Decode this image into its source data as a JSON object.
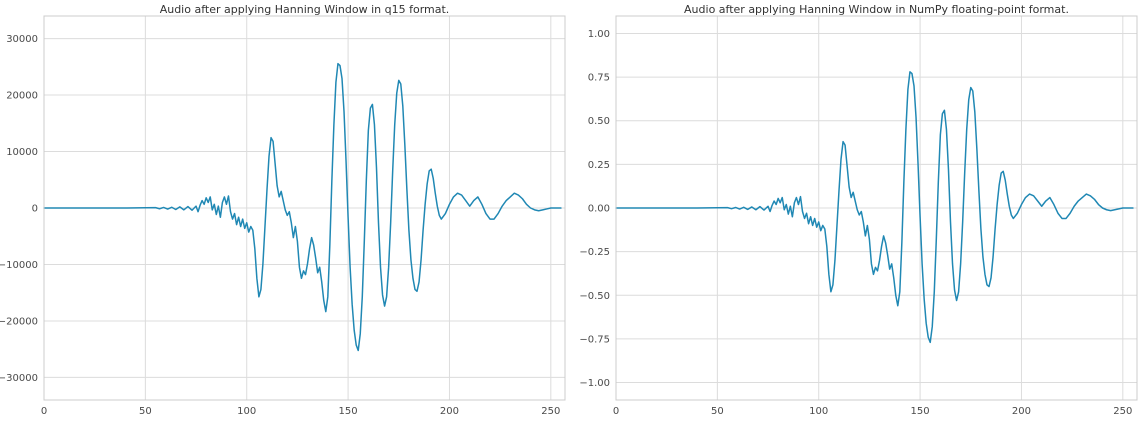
{
  "figure": {
    "background": "#ffffff"
  },
  "chart_data": [
    {
      "type": "line",
      "title": "Audio after applying Hanning Window in q15 format.",
      "xlabel": "",
      "ylabel": "",
      "grid": true,
      "legend": null,
      "line_color": "#2088b4",
      "grid_color": "#dcdcdc",
      "spine_color": "#cccccc",
      "xlim": [
        0,
        257
      ],
      "ylim": [
        -34000,
        34000
      ],
      "xticks": [
        0,
        50,
        100,
        150,
        200,
        250
      ],
      "xtick_labels": [
        "0",
        "50",
        "100",
        "150",
        "200",
        "250"
      ],
      "ytick_values": [
        30000,
        20000,
        10000,
        0,
        -10000,
        -20000,
        -30000
      ],
      "ytick_labels": [
        "30000",
        "20000",
        "10000",
        "0",
        "−10000",
        "−20000",
        "−30000"
      ],
      "points": [
        [
          0,
          0
        ],
        [
          40,
          0
        ],
        [
          55,
          66
        ],
        [
          57,
          -131
        ],
        [
          59,
          98
        ],
        [
          61,
          -197
        ],
        [
          63,
          131
        ],
        [
          65,
          -262
        ],
        [
          67,
          197
        ],
        [
          69,
          -328
        ],
        [
          71,
          262
        ],
        [
          73,
          -393
        ],
        [
          75,
          328
        ],
        [
          76,
          -655
        ],
        [
          77,
          492
        ],
        [
          78,
          1311
        ],
        [
          79,
          655
        ],
        [
          80,
          1802
        ],
        [
          81,
          983
        ],
        [
          82,
          1966
        ],
        [
          83,
          -328
        ],
        [
          84,
          655
        ],
        [
          85,
          -1147
        ],
        [
          86,
          328
        ],
        [
          87,
          -1638
        ],
        [
          88,
          983
        ],
        [
          89,
          1966
        ],
        [
          90,
          655
        ],
        [
          91,
          2130
        ],
        [
          92,
          -655
        ],
        [
          93,
          -1966
        ],
        [
          94,
          -983
        ],
        [
          95,
          -2949
        ],
        [
          96,
          -1638
        ],
        [
          97,
          -3277
        ],
        [
          98,
          -1966
        ],
        [
          99,
          -3604
        ],
        [
          100,
          -2621
        ],
        [
          101,
          -4260
        ],
        [
          102,
          -3277
        ],
        [
          103,
          -3932
        ],
        [
          104,
          -7209
        ],
        [
          105,
          -12452
        ],
        [
          106,
          -15729
        ],
        [
          107,
          -14418
        ],
        [
          108,
          -9830
        ],
        [
          109,
          -3277
        ],
        [
          110,
          3277
        ],
        [
          111,
          9175
        ],
        [
          112,
          12452
        ],
        [
          113,
          11796
        ],
        [
          114,
          7864
        ],
        [
          115,
          3932
        ],
        [
          116,
          1966
        ],
        [
          117,
          2949
        ],
        [
          118,
          1311
        ],
        [
          119,
          -328
        ],
        [
          120,
          -1311
        ],
        [
          121,
          -655
        ],
        [
          122,
          -2621
        ],
        [
          123,
          -5243
        ],
        [
          124,
          -3277
        ],
        [
          125,
          -5898
        ],
        [
          126,
          -10486
        ],
        [
          127,
          -12452
        ],
        [
          128,
          -11141
        ],
        [
          129,
          -11796
        ],
        [
          130,
          -9830
        ],
        [
          131,
          -7209
        ],
        [
          132,
          -5243
        ],
        [
          133,
          -6554
        ],
        [
          134,
          -8847
        ],
        [
          135,
          -11469
        ],
        [
          136,
          -10486
        ],
        [
          137,
          -13107
        ],
        [
          138,
          -16384
        ],
        [
          139,
          -18350
        ],
        [
          140,
          -15729
        ],
        [
          141,
          -6554
        ],
        [
          142,
          4915
        ],
        [
          143,
          14746
        ],
        [
          144,
          22282
        ],
        [
          145,
          25559
        ],
        [
          146,
          25231
        ],
        [
          147,
          22938
        ],
        [
          148,
          17039
        ],
        [
          149,
          8192
        ],
        [
          150,
          -1638
        ],
        [
          151,
          -10486
        ],
        [
          152,
          -17039
        ],
        [
          153,
          -21627
        ],
        [
          154,
          -24248
        ],
        [
          155,
          -25231
        ],
        [
          156,
          -22282
        ],
        [
          157,
          -15729
        ],
        [
          158,
          -5898
        ],
        [
          159,
          4915
        ],
        [
          160,
          13763
        ],
        [
          161,
          17695
        ],
        [
          162,
          18350
        ],
        [
          163,
          14746
        ],
        [
          164,
          7209
        ],
        [
          165,
          -2621
        ],
        [
          166,
          -10486
        ],
        [
          167,
          -15401
        ],
        [
          168,
          -17367
        ],
        [
          169,
          -15729
        ],
        [
          170,
          -10486
        ],
        [
          171,
          -2621
        ],
        [
          172,
          6554
        ],
        [
          173,
          14746
        ],
        [
          174,
          20316
        ],
        [
          175,
          22610
        ],
        [
          176,
          21955
        ],
        [
          177,
          18022
        ],
        [
          178,
          11141
        ],
        [
          179,
          3277
        ],
        [
          180,
          -3932
        ],
        [
          181,
          -9175
        ],
        [
          182,
          -12452
        ],
        [
          183,
          -14418
        ],
        [
          184,
          -14746
        ],
        [
          185,
          -13107
        ],
        [
          186,
          -9175
        ],
        [
          187,
          -3932
        ],
        [
          188,
          655
        ],
        [
          189,
          4260
        ],
        [
          190,
          6554
        ],
        [
          191,
          6881
        ],
        [
          192,
          5243
        ],
        [
          193,
          2621
        ],
        [
          194,
          328
        ],
        [
          195,
          -1311
        ],
        [
          196,
          -1966
        ],
        [
          198,
          -983
        ],
        [
          200,
          655
        ],
        [
          202,
          1966
        ],
        [
          204,
          2621
        ],
        [
          206,
          2294
        ],
        [
          208,
          1311
        ],
        [
          210,
          328
        ],
        [
          212,
          1311
        ],
        [
          214,
          1966
        ],
        [
          216,
          655
        ],
        [
          218,
          -983
        ],
        [
          220,
          -1966
        ],
        [
          222,
          -1966
        ],
        [
          224,
          -983
        ],
        [
          226,
          328
        ],
        [
          228,
          1311
        ],
        [
          230,
          1966
        ],
        [
          232,
          2621
        ],
        [
          234,
          2294
        ],
        [
          236,
          1638
        ],
        [
          238,
          655
        ],
        [
          240,
          0
        ],
        [
          242,
          -328
        ],
        [
          244,
          -492
        ],
        [
          246,
          -328
        ],
        [
          248,
          -164
        ],
        [
          250,
          0
        ],
        [
          255,
          0
        ]
      ]
    },
    {
      "type": "line",
      "title": "Audio after applying Hanning Window in NumPy floating-point format.",
      "xlabel": "",
      "ylabel": "",
      "grid": true,
      "legend": null,
      "line_color": "#2088b4",
      "grid_color": "#dcdcdc",
      "spine_color": "#cccccc",
      "xlim": [
        0,
        257
      ],
      "ylim": [
        -1.1,
        1.1
      ],
      "xticks": [
        0,
        50,
        100,
        150,
        200,
        250
      ],
      "xtick_labels": [
        "0",
        "50",
        "100",
        "150",
        "200",
        "250"
      ],
      "ytick_values": [
        1.0,
        0.75,
        0.5,
        0.25,
        0.0,
        -0.25,
        -0.5,
        -0.75,
        -1.0
      ],
      "ytick_labels": [
        "1.00",
        "0.75",
        "0.50",
        "0.25",
        "0.00",
        "−0.25",
        "−0.50",
        "−0.75",
        "−1.00"
      ],
      "points": [
        [
          0,
          0
        ],
        [
          40,
          0
        ],
        [
          55,
          0.002
        ],
        [
          57,
          -0.004
        ],
        [
          59,
          0.003
        ],
        [
          61,
          -0.006
        ],
        [
          63,
          0.004
        ],
        [
          65,
          -0.008
        ],
        [
          67,
          0.006
        ],
        [
          69,
          -0.01
        ],
        [
          71,
          0.008
        ],
        [
          73,
          -0.012
        ],
        [
          75,
          0.01
        ],
        [
          76,
          -0.02
        ],
        [
          77,
          0.015
        ],
        [
          78,
          0.04
        ],
        [
          79,
          0.02
        ],
        [
          80,
          0.055
        ],
        [
          81,
          0.03
        ],
        [
          82,
          0.06
        ],
        [
          83,
          -0.01
        ],
        [
          84,
          0.02
        ],
        [
          85,
          -0.035
        ],
        [
          86,
          0.01
        ],
        [
          87,
          -0.05
        ],
        [
          88,
          0.03
        ],
        [
          89,
          0.06
        ],
        [
          90,
          0.02
        ],
        [
          91,
          0.065
        ],
        [
          92,
          -0.02
        ],
        [
          93,
          -0.06
        ],
        [
          94,
          -0.03
        ],
        [
          95,
          -0.09
        ],
        [
          96,
          -0.05
        ],
        [
          97,
          -0.1
        ],
        [
          98,
          -0.06
        ],
        [
          99,
          -0.11
        ],
        [
          100,
          -0.08
        ],
        [
          101,
          -0.13
        ],
        [
          102,
          -0.1
        ],
        [
          103,
          -0.12
        ],
        [
          104,
          -0.22
        ],
        [
          105,
          -0.38
        ],
        [
          106,
          -0.48
        ],
        [
          107,
          -0.44
        ],
        [
          108,
          -0.3
        ],
        [
          109,
          -0.1
        ],
        [
          110,
          0.1
        ],
        [
          111,
          0.28
        ],
        [
          112,
          0.38
        ],
        [
          113,
          0.36
        ],
        [
          114,
          0.24
        ],
        [
          115,
          0.12
        ],
        [
          116,
          0.06
        ],
        [
          117,
          0.09
        ],
        [
          118,
          0.04
        ],
        [
          119,
          -0.01
        ],
        [
          120,
          -0.04
        ],
        [
          121,
          -0.02
        ],
        [
          122,
          -0.08
        ],
        [
          123,
          -0.16
        ],
        [
          124,
          -0.1
        ],
        [
          125,
          -0.18
        ],
        [
          126,
          -0.32
        ],
        [
          127,
          -0.38
        ],
        [
          128,
          -0.34
        ],
        [
          129,
          -0.36
        ],
        [
          130,
          -0.3
        ],
        [
          131,
          -0.22
        ],
        [
          132,
          -0.16
        ],
        [
          133,
          -0.2
        ],
        [
          134,
          -0.27
        ],
        [
          135,
          -0.35
        ],
        [
          136,
          -0.32
        ],
        [
          137,
          -0.4
        ],
        [
          138,
          -0.5
        ],
        [
          139,
          -0.56
        ],
        [
          140,
          -0.48
        ],
        [
          141,
          -0.2
        ],
        [
          142,
          0.15
        ],
        [
          143,
          0.45
        ],
        [
          144,
          0.68
        ],
        [
          145,
          0.78
        ],
        [
          146,
          0.77
        ],
        [
          147,
          0.7
        ],
        [
          148,
          0.52
        ],
        [
          149,
          0.25
        ],
        [
          150,
          -0.05
        ],
        [
          151,
          -0.32
        ],
        [
          152,
          -0.52
        ],
        [
          153,
          -0.66
        ],
        [
          154,
          -0.74
        ],
        [
          155,
          -0.77
        ],
        [
          156,
          -0.68
        ],
        [
          157,
          -0.48
        ],
        [
          158,
          -0.18
        ],
        [
          159,
          0.15
        ],
        [
          160,
          0.42
        ],
        [
          161,
          0.54
        ],
        [
          162,
          0.56
        ],
        [
          163,
          0.45
        ],
        [
          164,
          0.22
        ],
        [
          165,
          -0.08
        ],
        [
          166,
          -0.32
        ],
        [
          167,
          -0.47
        ],
        [
          168,
          -0.53
        ],
        [
          169,
          -0.48
        ],
        [
          170,
          -0.32
        ],
        [
          171,
          -0.08
        ],
        [
          172,
          0.2
        ],
        [
          173,
          0.45
        ],
        [
          174,
          0.62
        ],
        [
          175,
          0.69
        ],
        [
          176,
          0.67
        ],
        [
          177,
          0.55
        ],
        [
          178,
          0.34
        ],
        [
          179,
          0.1
        ],
        [
          180,
          -0.12
        ],
        [
          181,
          -0.28
        ],
        [
          182,
          -0.38
        ],
        [
          183,
          -0.44
        ],
        [
          184,
          -0.45
        ],
        [
          185,
          -0.4
        ],
        [
          186,
          -0.28
        ],
        [
          187,
          -0.12
        ],
        [
          188,
          0.02
        ],
        [
          189,
          0.13
        ],
        [
          190,
          0.2
        ],
        [
          191,
          0.21
        ],
        [
          192,
          0.16
        ],
        [
          193,
          0.08
        ],
        [
          194,
          0.01
        ],
        [
          195,
          -0.04
        ],
        [
          196,
          -0.06
        ],
        [
          198,
          -0.03
        ],
        [
          200,
          0.02
        ],
        [
          202,
          0.06
        ],
        [
          204,
          0.08
        ],
        [
          206,
          0.07
        ],
        [
          208,
          0.04
        ],
        [
          210,
          0.01
        ],
        [
          212,
          0.04
        ],
        [
          214,
          0.06
        ],
        [
          216,
          0.02
        ],
        [
          218,
          -0.03
        ],
        [
          220,
          -0.06
        ],
        [
          222,
          -0.06
        ],
        [
          224,
          -0.03
        ],
        [
          226,
          0.01
        ],
        [
          228,
          0.04
        ],
        [
          230,
          0.06
        ],
        [
          232,
          0.08
        ],
        [
          234,
          0.07
        ],
        [
          236,
          0.05
        ],
        [
          238,
          0.02
        ],
        [
          240,
          0
        ],
        [
          242,
          -0.01
        ],
        [
          244,
          -0.015
        ],
        [
          246,
          -0.01
        ],
        [
          248,
          -0.005
        ],
        [
          250,
          0
        ],
        [
          255,
          0
        ]
      ]
    }
  ]
}
